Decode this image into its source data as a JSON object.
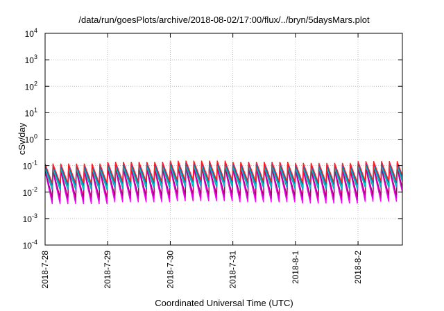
{
  "chart_data": {
    "type": "line",
    "title": "/data/run/goesPlots/archive/2018-08-02/17:00/flux/../bryn/5daysMars.plot",
    "xlabel": "Coordinated Universal Time (UTC)",
    "ylabel": "cSv/day",
    "yscale": "log",
    "ylim": [
      0.0001,
      10000
    ],
    "y_ticks": [
      {
        "base": "10",
        "exp": "-4"
      },
      {
        "base": "10",
        "exp": "-3"
      },
      {
        "base": "10",
        "exp": "-2"
      },
      {
        "base": "10",
        "exp": "-1"
      },
      {
        "base": "10",
        "exp": "0"
      },
      {
        "base": "10",
        "exp": "1"
      },
      {
        "base": "10",
        "exp": "2"
      },
      {
        "base": "10",
        "exp": "3"
      },
      {
        "base": "10",
        "exp": "4"
      }
    ],
    "x_ticks": [
      "2018-7-28",
      "2018-7-29",
      "2018-7-30",
      "2018-7-31",
      "2018-8-1",
      "2018-8-2"
    ],
    "xlim": [
      "2018-07-28 00:00",
      "2018-08-02 17:00"
    ],
    "grid": true,
    "sawtooth": {
      "period_hours": 3,
      "series_colors": [
        "#ff00ff",
        "#cc00cc",
        "#aa0066",
        "#00aacc",
        "#00cccc",
        "#009966",
        "#2255dd",
        "#ff2222"
      ],
      "series_peaks": [
        0.07,
        0.075,
        0.08,
        0.09,
        0.1,
        0.11,
        0.12,
        0.14
      ],
      "series_troughs": [
        0.0032,
        0.0045,
        0.006,
        0.012,
        0.015,
        0.018,
        0.02,
        0.022
      ],
      "daily_modulation": [
        0.85,
        1.0,
        1.1,
        1.0,
        0.9,
        1.05,
        1.15,
        1.0
      ]
    }
  }
}
